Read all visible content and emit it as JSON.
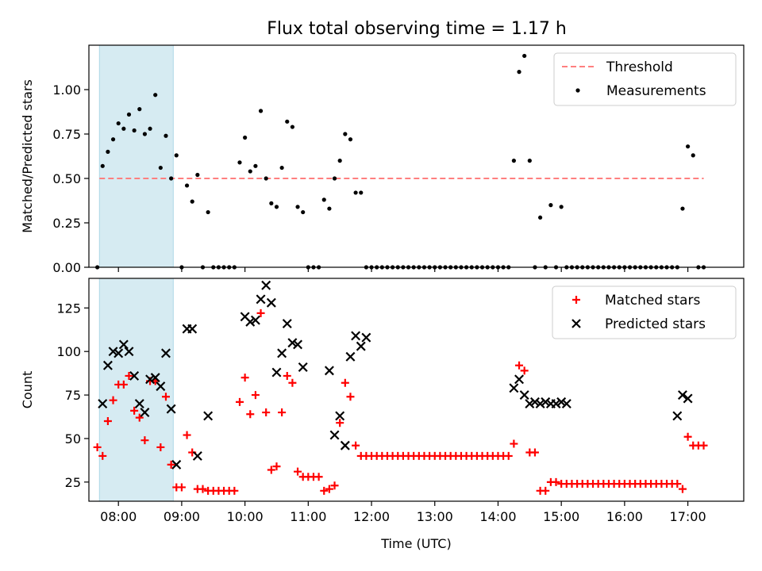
{
  "title": "Flux total observing time = 1.17 h",
  "colors": {
    "threshold": "#ff7f7f",
    "measurements": "#000000",
    "matched": "#ff0000",
    "predicted": "#000000",
    "highlight": "#add8e6"
  },
  "chart_data": [
    {
      "type": "scatter",
      "title": "Flux total observing time = 1.17 h",
      "xlabel": "",
      "ylabel": "Matched/Predicted stars",
      "xlim": [
        "07:32",
        "17:53"
      ],
      "ylim": [
        0,
        1.25
      ],
      "yticks": [
        0.0,
        0.25,
        0.5,
        0.75,
        1.0
      ],
      "ytick_labels": [
        "0.00",
        "0.25",
        "0.50",
        "0.75",
        "1.00"
      ],
      "xticks": [
        "08:00",
        "09:00",
        "10:00",
        "11:00",
        "12:00",
        "13:00",
        "14:00",
        "15:00",
        "16:00",
        "17:00"
      ],
      "grid": false,
      "legend": "top-right",
      "highlight_span": [
        "07:42",
        "08:52"
      ],
      "series": [
        {
          "name": "Threshold",
          "style": "dashed-line",
          "x": [
            "07:42",
            "17:15"
          ],
          "y": [
            0.5,
            0.5
          ]
        },
        {
          "name": "Measurements",
          "style": "dots",
          "x": [
            "07:40",
            "07:45",
            "07:50",
            "07:55",
            "08:00",
            "08:05",
            "08:10",
            "08:15",
            "08:20",
            "08:25",
            "08:30",
            "08:35",
            "08:40",
            "08:45",
            "08:50",
            "08:55",
            "09:00",
            "09:05",
            "09:10",
            "09:15",
            "09:20",
            "09:25",
            "09:30",
            "09:35",
            "09:40",
            "09:45",
            "09:50",
            "09:55",
            "10:00",
            "10:05",
            "10:10",
            "10:15",
            "10:20",
            "10:25",
            "10:30",
            "10:35",
            "10:40",
            "10:45",
            "10:50",
            "10:55",
            "11:00",
            "11:05",
            "11:10",
            "11:15",
            "11:20",
            "11:25",
            "11:30",
            "11:35",
            "11:40",
            "11:45",
            "11:50",
            "11:55",
            "12:00",
            "12:05",
            "12:10",
            "12:15",
            "12:20",
            "12:25",
            "12:30",
            "12:35",
            "12:40",
            "12:45",
            "12:50",
            "12:55",
            "13:00",
            "13:05",
            "13:10",
            "13:15",
            "13:20",
            "13:25",
            "13:30",
            "13:35",
            "13:40",
            "13:45",
            "13:50",
            "13:55",
            "14:00",
            "14:05",
            "14:10",
            "14:15",
            "14:20",
            "14:25",
            "14:30",
            "14:35",
            "14:40",
            "14:45",
            "14:50",
            "14:55",
            "15:00",
            "15:05",
            "15:10",
            "15:15",
            "15:20",
            "15:25",
            "15:30",
            "15:35",
            "15:40",
            "15:45",
            "15:50",
            "15:55",
            "16:00",
            "16:05",
            "16:10",
            "16:15",
            "16:20",
            "16:25",
            "16:30",
            "16:35",
            "16:40",
            "16:45",
            "16:50",
            "16:55",
            "17:00",
            "17:05",
            "17:10",
            "17:15"
          ],
          "y": [
            0.0,
            0.57,
            0.65,
            0.72,
            0.81,
            0.78,
            0.86,
            0.77,
            0.89,
            0.75,
            0.78,
            0.97,
            0.56,
            0.74,
            0.5,
            0.63,
            0.0,
            0.46,
            0.37,
            0.52,
            0.0,
            0.31,
            0.0,
            0.0,
            0.0,
            0.0,
            0.0,
            0.59,
            0.73,
            0.54,
            0.57,
            0.88,
            0.5,
            0.36,
            0.34,
            0.56,
            0.82,
            0.79,
            0.34,
            0.31,
            0.0,
            0.0,
            0.0,
            0.38,
            0.33,
            0.5,
            0.6,
            0.75,
            0.72,
            0.42,
            0.42,
            0.0,
            0.0,
            0.0,
            0.0,
            0.0,
            0.0,
            0.0,
            0.0,
            0.0,
            0.0,
            0.0,
            0.0,
            0.0,
            0.0,
            0.0,
            0.0,
            0.0,
            0.0,
            0.0,
            0.0,
            0.0,
            0.0,
            0.0,
            0.0,
            0.0,
            0.0,
            0.0,
            0.0,
            0.6,
            1.1,
            1.19,
            0.6,
            0.0,
            0.28,
            0.0,
            0.35,
            0.0,
            0.34,
            0.0,
            0.0,
            0.0,
            0.0,
            0.0,
            0.0,
            0.0,
            0.0,
            0.0,
            0.0,
            0.0,
            0.0,
            0.0,
            0.0,
            0.0,
            0.0,
            0.0,
            0.0,
            0.0,
            0.0,
            0.0,
            0.0,
            0.33,
            0.68,
            0.63,
            0.0,
            0.0
          ]
        }
      ]
    },
    {
      "type": "scatter",
      "title": "",
      "xlabel": "Time (UTC)",
      "ylabel": "Count",
      "xlim": [
        "07:32",
        "17:53"
      ],
      "ylim": [
        14,
        142
      ],
      "yticks": [
        25,
        50,
        75,
        100,
        125
      ],
      "ytick_labels": [
        "25",
        "50",
        "75",
        "100",
        "125"
      ],
      "xticks": [
        "08:00",
        "09:00",
        "10:00",
        "11:00",
        "12:00",
        "13:00",
        "14:00",
        "15:00",
        "16:00",
        "17:00"
      ],
      "xtick_labels": [
        "08:00",
        "09:00",
        "10:00",
        "11:00",
        "12:00",
        "13:00",
        "14:00",
        "15:00",
        "16:00",
        "17:00"
      ],
      "grid": false,
      "legend": "top-right",
      "highlight_span": [
        "07:42",
        "08:52"
      ],
      "series": [
        {
          "name": "Matched stars",
          "marker": "plus",
          "x": [
            "07:40",
            "07:45",
            "07:50",
            "07:55",
            "08:00",
            "08:05",
            "08:10",
            "08:15",
            "08:20",
            "08:25",
            "08:30",
            "08:35",
            "08:40",
            "08:45",
            "08:50",
            "08:55",
            "09:00",
            "09:05",
            "09:10",
            "09:15",
            "09:20",
            "09:25",
            "09:30",
            "09:35",
            "09:40",
            "09:45",
            "09:50",
            "09:55",
            "10:00",
            "10:05",
            "10:10",
            "10:15",
            "10:20",
            "10:25",
            "10:30",
            "10:35",
            "10:40",
            "10:45",
            "10:50",
            "10:55",
            "11:00",
            "11:05",
            "11:10",
            "11:15",
            "11:20",
            "11:25",
            "11:30",
            "11:35",
            "11:40",
            "11:45",
            "11:50",
            "11:55",
            "12:00",
            "12:05",
            "12:10",
            "12:15",
            "12:20",
            "12:25",
            "12:30",
            "12:35",
            "12:40",
            "12:45",
            "12:50",
            "12:55",
            "13:00",
            "13:05",
            "13:10",
            "13:15",
            "13:20",
            "13:25",
            "13:30",
            "13:35",
            "13:40",
            "13:45",
            "13:50",
            "13:55",
            "14:00",
            "14:05",
            "14:10",
            "14:15",
            "14:20",
            "14:25",
            "14:30",
            "14:35",
            "14:40",
            "14:45",
            "14:50",
            "14:55",
            "15:00",
            "15:05",
            "15:10",
            "15:15",
            "15:20",
            "15:25",
            "15:30",
            "15:35",
            "15:40",
            "15:45",
            "15:50",
            "15:55",
            "16:00",
            "16:05",
            "16:10",
            "16:15",
            "16:20",
            "16:25",
            "16:30",
            "16:35",
            "16:40",
            "16:45",
            "16:50",
            "16:55",
            "17:00",
            "17:05",
            "17:10",
            "17:15"
          ],
          "y": [
            45,
            40,
            60,
            72,
            81,
            81,
            86,
            66,
            62,
            49,
            83,
            83,
            45,
            74,
            35,
            22,
            22,
            52,
            42,
            21,
            21,
            20,
            20,
            20,
            20,
            20,
            20,
            71,
            85,
            64,
            75,
            122,
            65,
            32,
            34,
            65,
            86,
            82,
            31,
            28,
            28,
            28,
            28,
            20,
            21,
            23,
            59,
            82,
            74,
            46,
            40,
            40,
            40,
            40,
            40,
            40,
            40,
            40,
            40,
            40,
            40,
            40,
            40,
            40,
            40,
            40,
            40,
            40,
            40,
            40,
            40,
            40,
            40,
            40,
            40,
            40,
            40,
            40,
            40,
            47,
            92,
            89,
            42,
            42,
            20,
            20,
            25,
            25,
            24,
            24,
            24,
            24,
            24,
            24,
            24,
            24,
            24,
            24,
            24,
            24,
            24,
            24,
            24,
            24,
            24,
            24,
            24,
            24,
            24,
            24,
            24,
            21,
            51,
            46,
            46,
            46
          ]
        },
        {
          "name": "Predicted stars",
          "marker": "x",
          "x": [
            "07:45",
            "07:50",
            "07:55",
            "08:00",
            "08:05",
            "08:10",
            "08:15",
            "08:20",
            "08:25",
            "08:30",
            "08:35",
            "08:40",
            "08:45",
            "08:50",
            "08:55",
            "09:05",
            "09:10",
            "09:15",
            "09:25",
            "10:00",
            "10:05",
            "10:10",
            "10:15",
            "10:20",
            "10:25",
            "10:30",
            "10:35",
            "10:40",
            "10:45",
            "10:50",
            "10:55",
            "11:20",
            "11:25",
            "11:30",
            "11:35",
            "11:40",
            "11:45",
            "11:50",
            "11:55",
            "14:15",
            "14:20",
            "14:25",
            "14:30",
            "14:35",
            "14:40",
            "14:45",
            "14:50",
            "14:55",
            "15:00",
            "15:05",
            "16:50",
            "16:55",
            "17:00"
          ],
          "y": [
            70,
            92,
            100,
            99,
            104,
            100,
            86,
            70,
            65,
            84,
            85,
            80,
            99,
            67,
            35,
            113,
            113,
            40,
            63,
            120,
            117,
            118,
            130,
            138,
            128,
            88,
            99,
            116,
            105,
            104,
            91,
            89,
            52,
            63,
            46,
            97,
            109,
            103,
            108,
            79,
            84,
            75,
            70,
            71,
            70,
            71,
            70,
            70,
            71,
            70,
            63,
            75,
            73
          ]
        }
      ]
    }
  ]
}
